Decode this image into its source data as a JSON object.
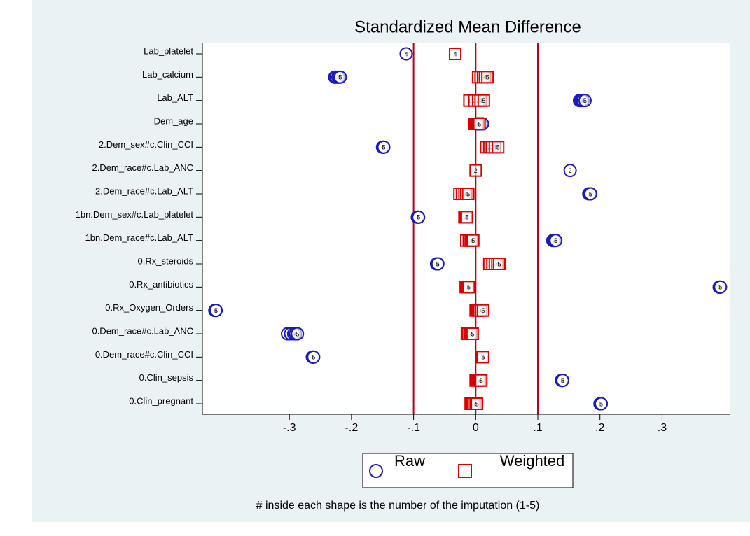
{
  "chart_data": {
    "type": "dot",
    "title": "Standardized Mean Difference",
    "note": "# inside each shape is the number of the imputation (1-5)",
    "categories": [
      "Lab_platelet",
      "Lab_calcium",
      "Lab_ALT",
      "Dem_age",
      "2.Dem_sex#c.Clin_CCI",
      "2.Dem_race#c.Lab_ANC",
      "2.Dem_race#c.Lab_ALT",
      "1bn.Dem_sex#c.Lab_platelet",
      "1bn.Dem_race#c.Lab_ALT",
      "0.Rx_steroids",
      "0.Rx_antibiotics",
      "0.Rx_Oxygen_Orders",
      "0.Dem_race#c.Lab_ANC",
      "0.Dem_race#c.Clin_CCI",
      "0.Clin_sepsis",
      "0.Clin_pregnant"
    ],
    "imputations": [
      1,
      2,
      3,
      4,
      5
    ],
    "series": [
      {
        "name": "Raw",
        "color": "#1c1cb4",
        "marker": "circle",
        "values": [
          [
            null,
            null,
            null,
            -0.112,
            null
          ],
          [
            -0.227,
            -0.225,
            -0.222,
            -0.22,
            -0.218
          ],
          [
            0.167,
            0.169,
            0.171,
            0.173,
            0.176
          ],
          [
            0.003,
            0.005,
            0.007,
            0.009,
            0.011
          ],
          [
            -0.15,
            -0.149,
            -0.149,
            -0.148,
            -0.148
          ],
          [
            null,
            0.152,
            null,
            null,
            null
          ],
          [
            0.182,
            0.183,
            0.184,
            0.184,
            0.185
          ],
          [
            -0.094,
            -0.093,
            -0.093,
            -0.092,
            -0.092
          ],
          [
            0.124,
            0.125,
            0.126,
            0.128,
            0.129
          ],
          [
            -0.063,
            -0.062,
            -0.062,
            -0.061,
            -0.061
          ],
          [
            0.392,
            0.393,
            0.393,
            0.394,
            0.394
          ],
          [
            -0.42,
            -0.419,
            -0.419,
            -0.418,
            -0.418
          ],
          [
            -0.303,
            -0.298,
            -0.293,
            -0.29,
            -0.287
          ],
          [
            -0.263,
            -0.262,
            -0.262,
            -0.261,
            -0.261
          ],
          [
            0.138,
            0.139,
            0.139,
            0.14,
            0.14
          ],
          [
            0.2,
            0.201,
            0.201,
            0.202,
            0.202
          ]
        ]
      },
      {
        "name": "Weighted",
        "color": "#d40000",
        "marker": "square",
        "values": [
          [
            null,
            null,
            null,
            -0.033,
            null
          ],
          [
            0.004,
            0.008,
            0.012,
            0.015,
            0.019
          ],
          [
            -0.01,
            -0.002,
            0.004,
            0.008,
            0.013
          ],
          [
            -0.002,
            0.0,
            0.002,
            0.004,
            0.006
          ],
          [
            0.017,
            0.022,
            0.026,
            0.031,
            0.036
          ],
          [
            null,
            0.0,
            null,
            null,
            null
          ],
          [
            -0.026,
            -0.022,
            -0.018,
            -0.015,
            -0.012
          ],
          [
            -0.018,
            -0.017,
            -0.016,
            -0.015,
            -0.014
          ],
          [
            -0.015,
            -0.011,
            -0.008,
            -0.006,
            -0.004
          ],
          [
            0.022,
            0.027,
            0.031,
            0.035,
            0.038
          ],
          [
            -0.016,
            -0.014,
            -0.013,
            -0.012,
            -0.011
          ],
          [
            0.0,
            0.003,
            0.006,
            0.009,
            0.012
          ],
          [
            -0.014,
            -0.012,
            -0.009,
            -0.007,
            -0.005
          ],
          [
            0.01,
            0.011,
            0.011,
            0.012,
            0.012
          ],
          [
            0.0,
            0.003,
            0.005,
            0.007,
            0.009
          ],
          [
            -0.008,
            -0.005,
            -0.003,
            0.0,
            0.002
          ]
        ]
      }
    ],
    "xlim": [
      -0.44,
      0.41
    ],
    "xticks": [
      {
        "value": -0.3,
        "label": "-.3"
      },
      {
        "value": -0.2,
        "label": "-.2"
      },
      {
        "value": -0.1,
        "label": "-.1"
      },
      0,
      {
        "value": 0.1,
        "label": ".1"
      },
      {
        "value": 0.2,
        "label": ".2"
      },
      {
        "value": 0.3,
        "label": ".3"
      }
    ],
    "reference_lines": [
      -0.1,
      0,
      0.1
    ],
    "reference_line_color": "#b0001e"
  }
}
